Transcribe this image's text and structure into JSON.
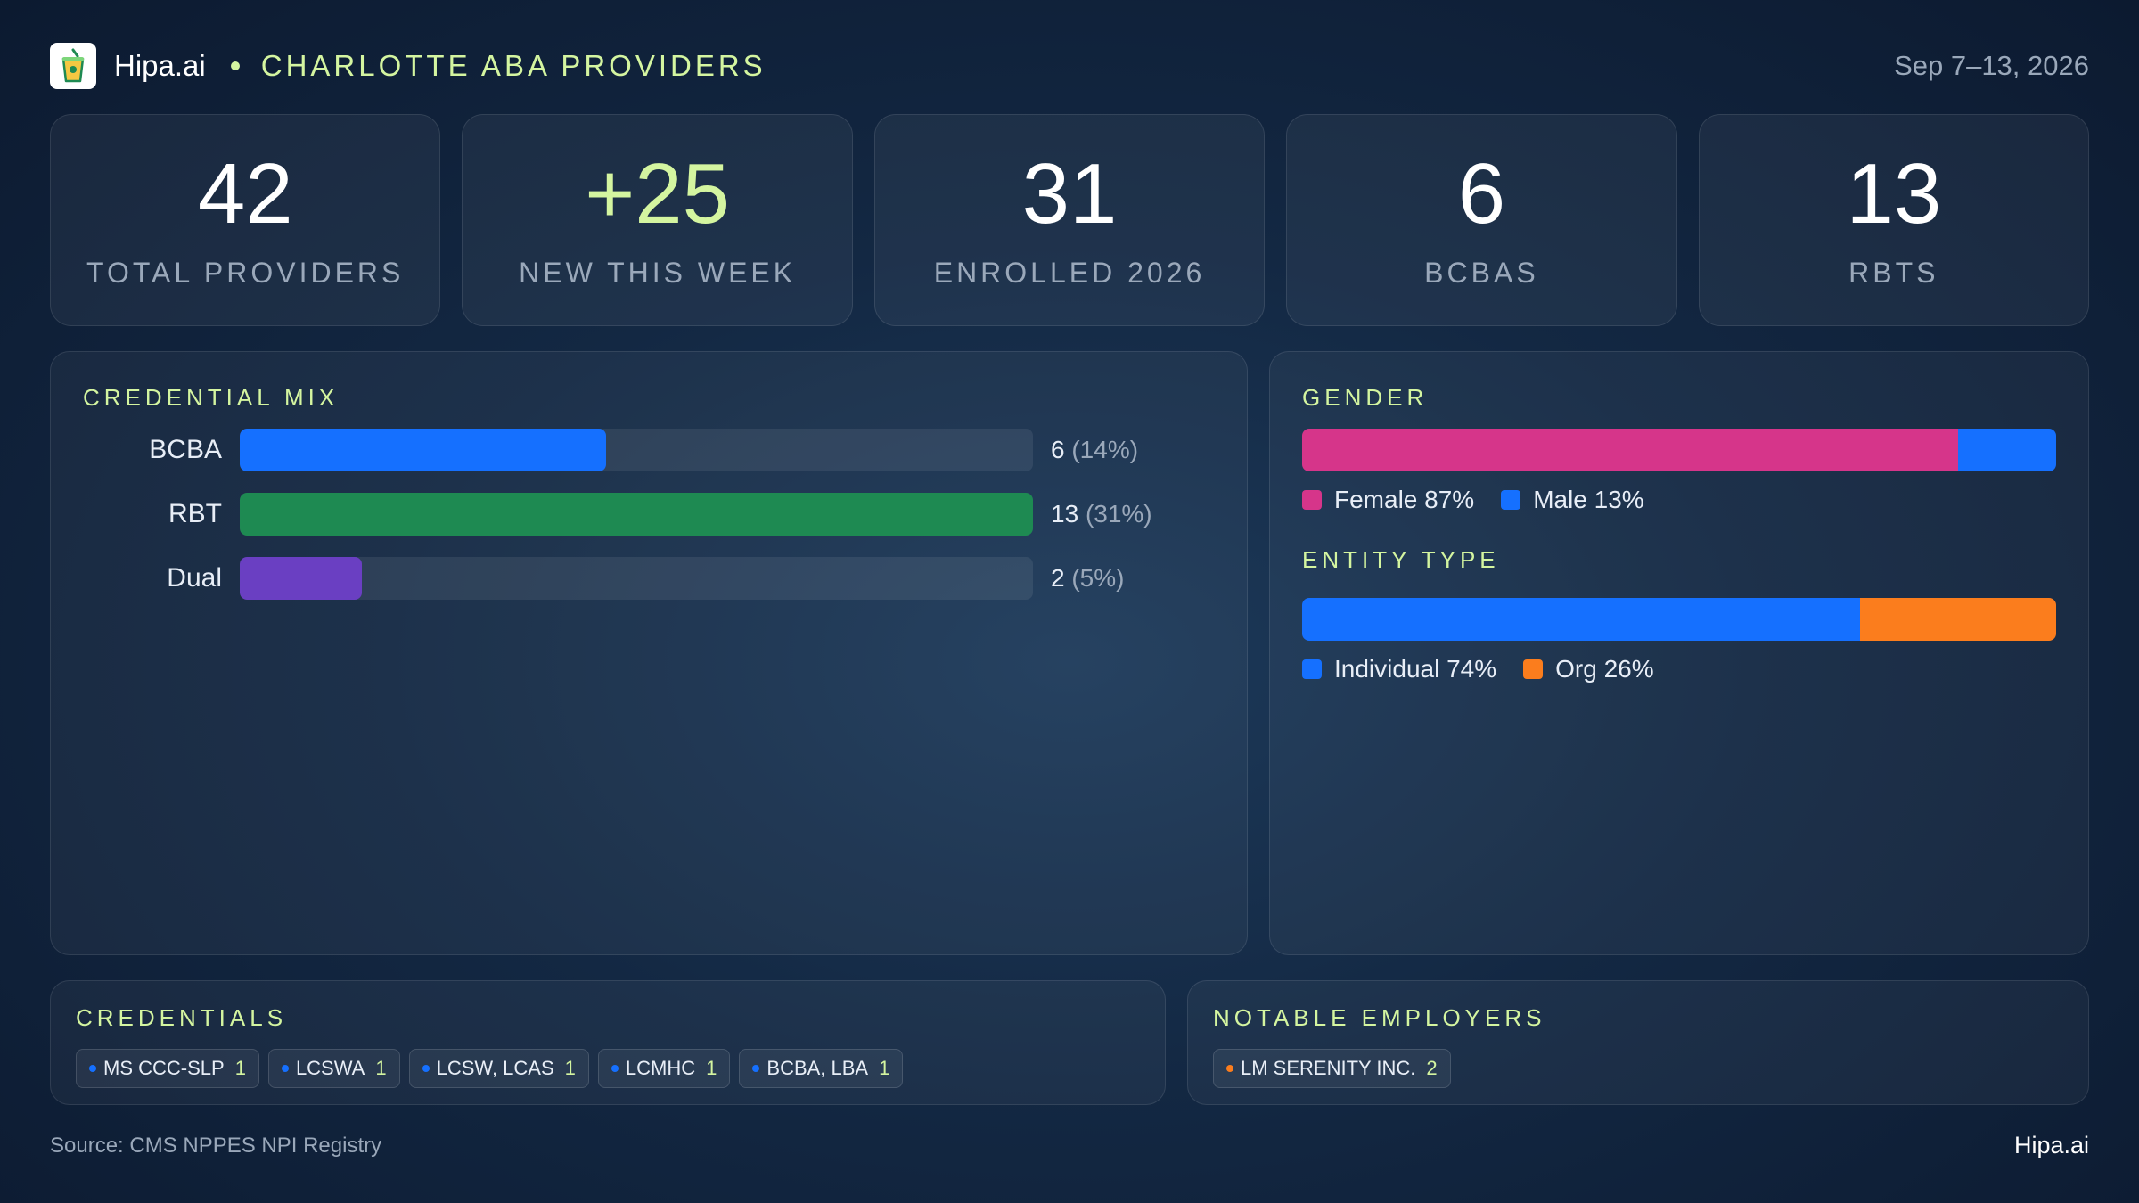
{
  "header": {
    "brand": "Hipa.ai",
    "title": "CHARLOTTE ABA PROVIDERS",
    "date_range": "Sep 7–13, 2026",
    "logo_icon": "cup-icon"
  },
  "stats": [
    {
      "value": "42",
      "label": "TOTAL PROVIDERS"
    },
    {
      "value": "+25",
      "label": "NEW THIS WEEK"
    },
    {
      "value": "31",
      "label": "ENROLLED 2026"
    },
    {
      "value": "6",
      "label": "BCBAS"
    },
    {
      "value": "13",
      "label": "RBTS"
    }
  ],
  "chart_data": [
    {
      "type": "bar",
      "title": "CREDENTIAL MIX",
      "orientation": "horizontal",
      "categories": [
        "BCBA",
        "RBT",
        "Dual"
      ],
      "values": [
        6,
        13,
        2
      ],
      "labels": [
        {
          "count": "6",
          "pct": "(14%)"
        },
        {
          "count": "13",
          "pct": "(31%)"
        },
        {
          "count": "2",
          "pct": "(5%)"
        }
      ],
      "xlim": [
        0,
        13
      ],
      "colors": [
        "#1570ff",
        "#1e8a52",
        "#6a3fc2"
      ]
    },
    {
      "type": "bar",
      "title": "GENDER",
      "stacked": true,
      "series": [
        {
          "name": "Female",
          "label": "Female 87%",
          "values": [
            87
          ],
          "color": "#d6358a"
        },
        {
          "name": "Male",
          "label": "Male 13%",
          "values": [
            13
          ],
          "color": "#1570ff"
        }
      ]
    },
    {
      "type": "bar",
      "title": "ENTITY TYPE",
      "stacked": true,
      "series": [
        {
          "name": "Individual",
          "label": "Individual 74%",
          "values": [
            74
          ],
          "color": "#1570ff"
        },
        {
          "name": "Org",
          "label": "Org 26%",
          "values": [
            26
          ],
          "color": "#fb7d1d"
        }
      ]
    }
  ],
  "credentials": {
    "title": "CREDENTIALS",
    "chips": [
      {
        "label": "MS CCC-SLP",
        "count": "1"
      },
      {
        "label": "LCSWA",
        "count": "1"
      },
      {
        "label": "LCSW, LCAS",
        "count": "1"
      },
      {
        "label": "LCMHC",
        "count": "1"
      },
      {
        "label": "BCBA, LBA",
        "count": "1"
      }
    ],
    "dot_color": "#1570ff"
  },
  "employers": {
    "title": "NOTABLE EMPLOYERS",
    "chips": [
      {
        "label": "LM SERENITY INC.",
        "count": "2"
      }
    ],
    "dot_color": "#fb7d1d"
  },
  "footer": {
    "source": "Source: CMS NPPES NPI Registry",
    "brand": "Hipa.ai"
  }
}
